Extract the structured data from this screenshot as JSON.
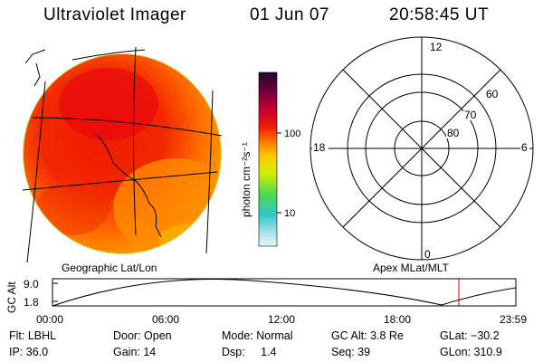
{
  "header": {
    "instrument": "Ultraviolet Imager",
    "date": "01 Jun 07",
    "time": "20:58:45 UT"
  },
  "colorbar": {
    "unit_label": "photon cm⁻²s⁻¹",
    "tick_labels": [
      "100",
      "10"
    ],
    "colors": [
      "#1a0a2a",
      "#7a0050",
      "#d8002a",
      "#f02000",
      "#ff7a00",
      "#ffc800",
      "#c8f000",
      "#50d850",
      "#30c8c8",
      "#b8e6ec"
    ]
  },
  "globe_panel": {
    "caption": "Geographic Lat/Lon"
  },
  "polar_panel": {
    "caption": "Apex MLat/MLT",
    "mlt_labels": {
      "top": "12",
      "left": "18",
      "right": "6",
      "bottom": "0"
    },
    "lat_labels": [
      "60",
      "70",
      "80"
    ]
  },
  "timeline": {
    "ylabel": "GC Alt",
    "ytick_labels": [
      "9.0",
      "1.8"
    ],
    "xtick_labels": [
      "00:00",
      "06:00",
      "12:00",
      "18:00",
      "23:59"
    ],
    "current_marker_color": "#cc0000"
  },
  "footer": {
    "row1": {
      "flt": "Flt: LBHL",
      "door": "Door: Open",
      "mode": "Mode: Normal",
      "gc_alt": "GC Alt: 3.8 Re",
      "glat": "GLat: −30.2"
    },
    "row2": {
      "ip": "IP: 36.0",
      "gain": "Gain: 14",
      "dsp": "Dsp:     1.4",
      "seq": "Seq: 39",
      "glon": "GLon: 310.9"
    }
  }
}
